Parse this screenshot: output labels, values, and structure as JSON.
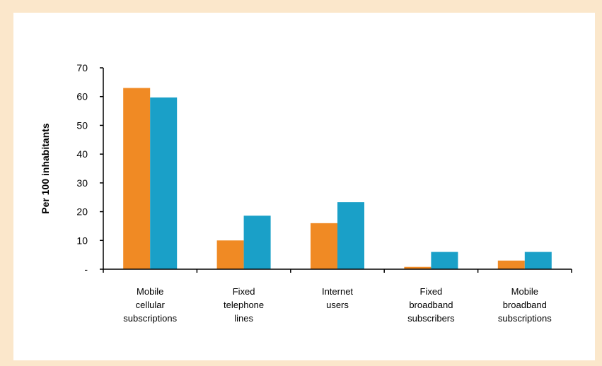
{
  "chart_data": {
    "type": "bar",
    "categories": [
      [
        "Mobile",
        "cellular",
        "subscriptions"
      ],
      [
        "Fixed",
        "telephone",
        "lines"
      ],
      [
        "Internet",
        "users"
      ],
      [
        "Fixed",
        "broadband",
        "subscribers"
      ],
      [
        "Mobile",
        "broadband",
        "subscriptions"
      ]
    ],
    "series": [
      {
        "values": [
          63,
          10,
          16,
          0.8,
          3
        ],
        "color": "#f08a24"
      },
      {
        "values": [
          59.7,
          18.6,
          23.3,
          6,
          6
        ],
        "color": "#1aa0c8"
      }
    ],
    "title": "",
    "xlabel": "",
    "ylabel": "Per 100 inhabitants",
    "ylim": [
      0,
      70
    ],
    "yticks": [
      "-",
      "10",
      "20",
      "30",
      "40",
      "50",
      "60",
      "70"
    ],
    "grid": false,
    "legend": "none"
  }
}
